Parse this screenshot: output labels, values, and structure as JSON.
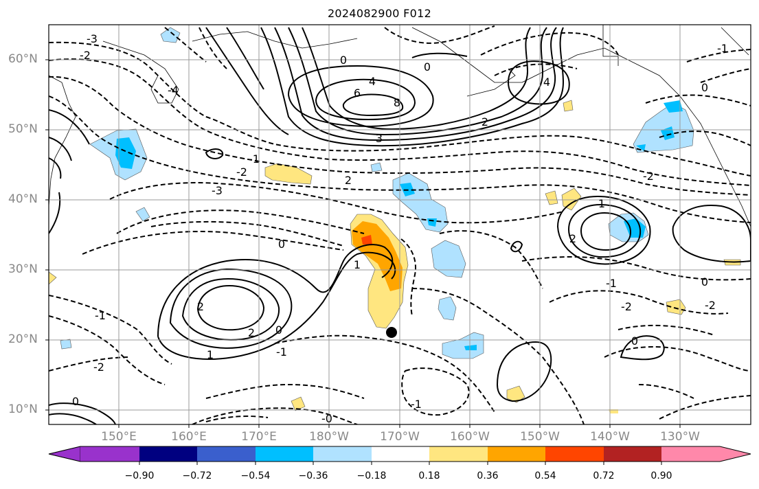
{
  "title": "2024082900 F012",
  "latitude_labels": [
    "60°N",
    "50°N",
    "40°N",
    "30°N",
    "20°N",
    "10°N"
  ],
  "longitude_labels": [
    "150°E",
    "160°E",
    "170°E",
    "180°W",
    "170°W",
    "160°W",
    "150°W",
    "140°W",
    "130°W"
  ],
  "contour_labels": [
    "0",
    "2",
    "4",
    "6",
    "8",
    "3",
    "2",
    "0",
    "-2",
    "-3",
    "-1",
    "0",
    "1",
    "2",
    "-4",
    "-3",
    "-2",
    "-1",
    "0",
    "1",
    "2",
    "-1",
    "-2",
    "-0",
    "0",
    "-2",
    "-1",
    "1",
    "2",
    "4",
    "-2",
    "0",
    "-1",
    "-1",
    "-2",
    "0",
    "0"
  ],
  "marker": "typhoon-center",
  "colorbar": {
    "tick_labels": [
      "−0.90",
      "−0.72",
      "−0.54",
      "−0.36",
      "−0.18",
      "0.18",
      "0.36",
      "0.54",
      "0.72",
      "0.90"
    ],
    "colors": [
      "#9932cc",
      "#000080",
      "#3a5fcd",
      "#00bfff",
      "#b0e2ff",
      "#ffffff",
      "#ffe680",
      "#ffa500",
      "#ff4500",
      "#b22222",
      "#ff88aa"
    ]
  }
}
